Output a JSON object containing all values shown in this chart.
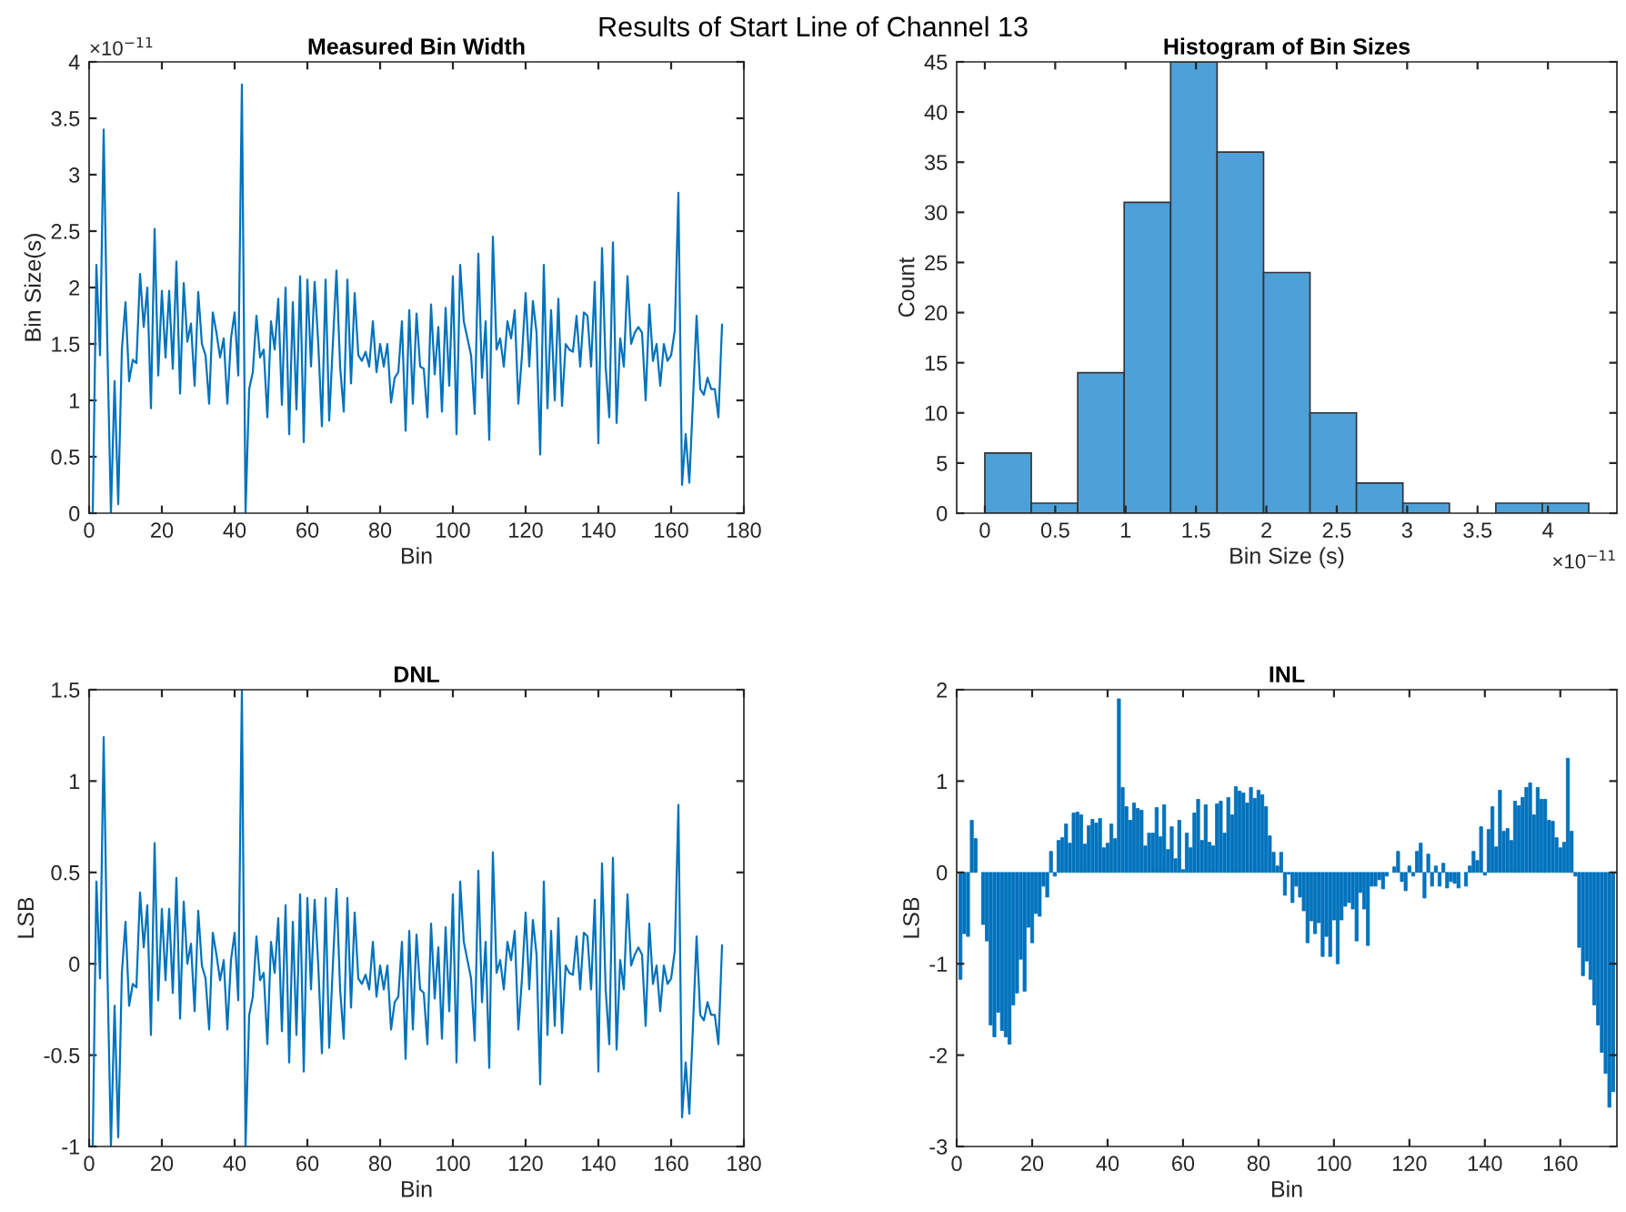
{
  "chart_data": [
    {
      "type": "line",
      "title": "Measured Bin Width",
      "xlabel": "Bin",
      "ylabel": "Bin Size(s)",
      "color": "#0072bd",
      "annotations": [
        "Results of Start Line of Channel 13",
        "×10$^{−11}$"
      ],
      "xlim": [
        0,
        180
      ],
      "xticks": [
        0,
        20,
        40,
        60,
        80,
        100,
        120,
        140,
        160,
        180
      ],
      "ylim": [
        0,
        4
      ],
      "yticks": [
        0,
        0.5,
        1,
        1.5,
        2,
        2.5,
        3,
        3.5,
        4
      ],
      "grid": false,
      "legend": false,
      "x": [
        1,
        2,
        3,
        4,
        5,
        6,
        7,
        8,
        9,
        10,
        11,
        12,
        13,
        14,
        15,
        16,
        17,
        18,
        19,
        20,
        21,
        22,
        23,
        24,
        25,
        26,
        27,
        28,
        29,
        30,
        31,
        32,
        33,
        34,
        35,
        36,
        37,
        38,
        39,
        40,
        41,
        42,
        43,
        44,
        45,
        46,
        47,
        48,
        49,
        50,
        51,
        52,
        53,
        54,
        55,
        56,
        57,
        58,
        59,
        60,
        61,
        62,
        63,
        64,
        65,
        66,
        67,
        68,
        69,
        70,
        71,
        72,
        73,
        74,
        75,
        76,
        77,
        78,
        79,
        80,
        81,
        82,
        83,
        84,
        85,
        86,
        87,
        88,
        89,
        90,
        91,
        92,
        93,
        94,
        95,
        96,
        97,
        98,
        99,
        100,
        101,
        102,
        103,
        104,
        105,
        106,
        107,
        108,
        109,
        110,
        111,
        112,
        113,
        114,
        115,
        116,
        117,
        118,
        119,
        120,
        121,
        122,
        123,
        124,
        125,
        126,
        127,
        128,
        129,
        130,
        131,
        132,
        133,
        134,
        135,
        136,
        137,
        138,
        139,
        140,
        141,
        142,
        143,
        144,
        145,
        146,
        147,
        148,
        149,
        150,
        151,
        152,
        153,
        154,
        155,
        156,
        157,
        158,
        159,
        160,
        161,
        162,
        163,
        164,
        165,
        166,
        167,
        168,
        169,
        170,
        171,
        172,
        173,
        174
      ],
      "values": [
        0,
        2.2,
        1.4,
        3.4,
        1.5,
        0,
        1.17,
        0.08,
        1.45,
        1.87,
        1.17,
        1.36,
        1.33,
        2.12,
        1.65,
        2.0,
        0.93,
        2.52,
        1.22,
        1.97,
        1.38,
        1.97,
        1.28,
        2.23,
        1.06,
        2.04,
        1.52,
        1.68,
        1.13,
        1.96,
        1.5,
        1.4,
        0.97,
        1.78,
        1.6,
        1.38,
        1.55,
        0.97,
        1.55,
        1.78,
        1.22,
        3.8,
        0,
        1.1,
        1.25,
        1.75,
        1.38,
        1.45,
        0.85,
        1.7,
        1.45,
        1.9,
        0.96,
        2.0,
        0.7,
        1.87,
        0.92,
        2.1,
        0.63,
        2.07,
        1.3,
        2.05,
        1.5,
        0.77,
        2.07,
        0.82,
        1.5,
        2.15,
        1.3,
        0.9,
        2.07,
        1.15,
        1.95,
        1.4,
        1.35,
        1.43,
        1.3,
        1.7,
        1.25,
        1.5,
        1.3,
        1.5,
        0.98,
        1.2,
        1.25,
        1.7,
        0.73,
        1.8,
        0.97,
        1.77,
        1.3,
        1.28,
        0.85,
        1.85,
        1.23,
        1.65,
        0.9,
        1.82,
        1.13,
        2.1,
        0.7,
        2.2,
        1.7,
        1.55,
        1.4,
        0.88,
        2.3,
        1.2,
        1.7,
        0.65,
        2.45,
        1.45,
        1.55,
        1.3,
        1.7,
        1.55,
        1.8,
        0.97,
        1.4,
        1.95,
        1.3,
        1.88,
        1.6,
        0.52,
        2.2,
        0.93,
        1.8,
        1.0,
        1.9,
        0.95,
        1.5,
        1.45,
        1.43,
        1.75,
        1.3,
        1.78,
        1.75,
        1.3,
        2.05,
        0.62,
        2.35,
        1.3,
        0.85,
        2.4,
        0.8,
        1.55,
        1.3,
        2.1,
        1.5,
        1.6,
        1.65,
        1.6,
        1.0,
        1.85,
        1.35,
        1.5,
        1.13,
        1.5,
        1.35,
        1.4,
        1.62,
        2.84,
        0.25,
        0.7,
        0.27,
        1.0,
        1.75,
        1.1,
        1.05,
        1.2,
        1.1,
        1.1,
        0.85,
        1.67
      ]
    },
    {
      "type": "histogram",
      "title": "Histogram of Bin Sizes",
      "xlabel": "Bin Size (s)",
      "ylabel": "Count",
      "color": "#4da1d8",
      "annotations": [
        "×10$^{−11}$"
      ],
      "xlim": [
        -0.2,
        4.49
      ],
      "xticks": [
        0,
        0.5,
        1,
        1.5,
        2,
        2.5,
        3,
        3.5,
        4
      ],
      "ylim": [
        0,
        45
      ],
      "yticks": [
        0,
        5,
        10,
        15,
        20,
        25,
        30,
        35,
        40,
        45
      ],
      "grid": false,
      "legend": false,
      "bins": [
        0,
        0.33,
        0.66,
        0.99,
        1.32,
        1.65,
        1.98,
        2.31,
        2.64,
        2.97,
        3.3,
        3.63,
        3.96,
        4.29
      ],
      "values": [
        6,
        1,
        14,
        31,
        45,
        36,
        24,
        10,
        3,
        1,
        0,
        1,
        1
      ]
    },
    {
      "type": "line",
      "title": "DNL",
      "xlabel": "Bin",
      "ylabel": "LSB",
      "color": "#0072bd",
      "xlim": [
        0,
        180
      ],
      "xticks": [
        0,
        20,
        40,
        60,
        80,
        100,
        120,
        140,
        160,
        180
      ],
      "ylim": [
        -1,
        1.5
      ],
      "yticks": [
        -1,
        -0.5,
        0,
        0.5,
        1,
        1.5
      ],
      "grid": false,
      "legend": false,
      "x": [
        1,
        2,
        3,
        4,
        5,
        6,
        7,
        8,
        9,
        10,
        11,
        12,
        13,
        14,
        15,
        16,
        17,
        18,
        19,
        20,
        21,
        22,
        23,
        24,
        25,
        26,
        27,
        28,
        29,
        30,
        31,
        32,
        33,
        34,
        35,
        36,
        37,
        38,
        39,
        40,
        41,
        42,
        43,
        44,
        45,
        46,
        47,
        48,
        49,
        50,
        51,
        52,
        53,
        54,
        55,
        56,
        57,
        58,
        59,
        60,
        61,
        62,
        63,
        64,
        65,
        66,
        67,
        68,
        69,
        70,
        71,
        72,
        73,
        74,
        75,
        76,
        77,
        78,
        79,
        80,
        81,
        82,
        83,
        84,
        85,
        86,
        87,
        88,
        89,
        90,
        91,
        92,
        93,
        94,
        95,
        96,
        97,
        98,
        99,
        100,
        101,
        102,
        103,
        104,
        105,
        106,
        107,
        108,
        109,
        110,
        111,
        112,
        113,
        114,
        115,
        116,
        117,
        118,
        119,
        120,
        121,
        122,
        123,
        124,
        125,
        126,
        127,
        128,
        129,
        130,
        131,
        132,
        133,
        134,
        135,
        136,
        137,
        138,
        139,
        140,
        141,
        142,
        143,
        144,
        145,
        146,
        147,
        148,
        149,
        150,
        151,
        152,
        153,
        154,
        155,
        156,
        157,
        158,
        159,
        160,
        161,
        162,
        163,
        164,
        165,
        166,
        167,
        168,
        169,
        170,
        171,
        172,
        173,
        174
      ],
      "values": [
        -1,
        0.45,
        -0.08,
        1.24,
        -0.01,
        -1,
        -0.23,
        -0.95,
        -0.05,
        0.23,
        -0.23,
        -0.11,
        -0.13,
        0.39,
        0.09,
        0.32,
        -0.39,
        0.66,
        -0.2,
        0.3,
        -0.09,
        0.3,
        -0.16,
        0.47,
        -0.3,
        0.34,
        0,
        0.11,
        -0.26,
        0.29,
        -0.01,
        -0.08,
        -0.36,
        0.17,
        0.05,
        -0.09,
        0.02,
        -0.36,
        0.02,
        0.17,
        -0.2,
        1.5,
        -1,
        -0.28,
        -0.18,
        0.15,
        -0.09,
        -0.05,
        -0.44,
        0.12,
        -0.05,
        0.25,
        -0.37,
        0.32,
        -0.54,
        0.23,
        -0.39,
        0.38,
        -0.59,
        0.36,
        -0.14,
        0.35,
        -0.01,
        -0.49,
        0.36,
        -0.46,
        -0.01,
        0.41,
        -0.14,
        -0.41,
        0.36,
        -0.24,
        0.28,
        -0.08,
        -0.11,
        -0.06,
        -0.14,
        0.12,
        -0.18,
        -0.01,
        -0.14,
        -0.01,
        -0.36,
        -0.21,
        -0.18,
        0.12,
        -0.52,
        0.18,
        -0.36,
        0.16,
        -0.14,
        -0.16,
        -0.44,
        0.22,
        -0.19,
        0.09,
        -0.41,
        0.2,
        -0.26,
        0.38,
        -0.54,
        0.45,
        0.12,
        0.02,
        -0.08,
        -0.42,
        0.51,
        -0.21,
        0.12,
        -0.57,
        0.61,
        -0.05,
        0.02,
        -0.14,
        0.12,
        0.02,
        0.18,
        -0.36,
        -0.08,
        0.28,
        -0.14,
        0.24,
        0.05,
        -0.66,
        0.45,
        -0.39,
        0.18,
        -0.34,
        0.25,
        -0.38,
        -0.01,
        -0.05,
        -0.06,
        0.15,
        -0.14,
        0.17,
        0.15,
        -0.14,
        0.35,
        -0.59,
        0.55,
        -0.14,
        -0.44,
        0.58,
        -0.47,
        0.02,
        -0.14,
        0.38,
        -0.01,
        0.05,
        0.09,
        0.05,
        -0.34,
        0.22,
        -0.11,
        -0.01,
        -0.26,
        -0.01,
        -0.11,
        -0.08,
        0.07,
        0.87,
        -0.84,
        -0.54,
        -0.82,
        -0.34,
        0.15,
        -0.28,
        -0.31,
        -0.21,
        -0.28,
        -0.28,
        -0.44,
        0.1
      ]
    },
    {
      "type": "bar",
      "title": "INL",
      "xlabel": "Bin",
      "ylabel": "LSB",
      "color": "#0072bd",
      "xlim": [
        0,
        175
      ],
      "xticks": [
        0,
        20,
        40,
        60,
        80,
        100,
        120,
        140,
        160
      ],
      "ylim": [
        -3,
        2
      ],
      "yticks": [
        -3,
        -2,
        -1,
        0,
        1,
        2
      ],
      "grid": false,
      "legend": false,
      "x": [
        1,
        2,
        3,
        4,
        5,
        6,
        7,
        8,
        9,
        10,
        11,
        12,
        13,
        14,
        15,
        16,
        17,
        18,
        19,
        20,
        21,
        22,
        23,
        24,
        25,
        26,
        27,
        28,
        29,
        30,
        31,
        32,
        33,
        34,
        35,
        36,
        37,
        38,
        39,
        40,
        41,
        42,
        43,
        44,
        45,
        46,
        47,
        48,
        49,
        50,
        51,
        52,
        53,
        54,
        55,
        56,
        57,
        58,
        59,
        60,
        61,
        62,
        63,
        64,
        65,
        66,
        67,
        68,
        69,
        70,
        71,
        72,
        73,
        74,
        75,
        76,
        77,
        78,
        79,
        80,
        81,
        82,
        83,
        84,
        85,
        86,
        87,
        88,
        89,
        90,
        91,
        92,
        93,
        94,
        95,
        96,
        97,
        98,
        99,
        100,
        101,
        102,
        103,
        104,
        105,
        106,
        107,
        108,
        109,
        110,
        111,
        112,
        113,
        114,
        115,
        116,
        117,
        118,
        119,
        120,
        121,
        122,
        123,
        124,
        125,
        126,
        127,
        128,
        129,
        130,
        131,
        132,
        133,
        134,
        135,
        136,
        137,
        138,
        139,
        140,
        141,
        142,
        143,
        144,
        145,
        146,
        147,
        148,
        149,
        150,
        151,
        152,
        153,
        154,
        155,
        156,
        157,
        158,
        159,
        160,
        161,
        162,
        163,
        164,
        165,
        166,
        167,
        168,
        169,
        170,
        171,
        172,
        173,
        174
      ],
      "values": [
        -1.17,
        -0.67,
        -0.7,
        0.57,
        0.37,
        0,
        -0.57,
        -0.75,
        -1.67,
        -1.8,
        -1.53,
        -1.73,
        -1.8,
        -1.88,
        -1.45,
        -1.32,
        -0.95,
        -1.3,
        -0.6,
        -0.77,
        -0.45,
        -0.48,
        -0.15,
        -0.27,
        0.23,
        -0.04,
        0.35,
        0.38,
        0.53,
        0.32,
        0.65,
        0.66,
        0.63,
        0.31,
        0.51,
        0.58,
        0.54,
        0.59,
        0.27,
        0.32,
        0.53,
        0.37,
        1.9,
        0.93,
        0.72,
        0.57,
        0.76,
        0.7,
        0.68,
        0.29,
        0.43,
        0.43,
        0.71,
        0.39,
        0.74,
        0.25,
        0.5,
        0.15,
        0.57,
        0.03,
        0.43,
        0.27,
        0.65,
        0.8,
        0.35,
        0.74,
        0.33,
        0.29,
        0.75,
        0.78,
        0.43,
        0.82,
        0.63,
        0.94,
        0.89,
        0.87,
        0.76,
        0.93,
        0.81,
        0.9,
        0.85,
        0.72,
        0.4,
        0.22,
        0.07,
        0.22,
        -0.25,
        -0.02,
        -0.33,
        -0.15,
        -0.27,
        -0.42,
        -0.77,
        -0.53,
        -0.67,
        -0.55,
        -0.92,
        -0.7,
        -0.92,
        -0.52,
        -1.0,
        -0.52,
        -0.37,
        -0.33,
        -0.4,
        -0.75,
        -0.22,
        -0.4,
        -0.8,
        -0.15,
        -0.15,
        -0.08,
        -0.18,
        -0.04,
        0,
        0.06,
        0.23,
        -0.1,
        -0.2,
        0.07,
        -0.04,
        0.23,
        0.32,
        -0.28,
        0.2,
        -0.15,
        0.07,
        -0.15,
        0.1,
        -0.17,
        -0.1,
        -0.12,
        -0.17,
        0,
        -0.15,
        0.07,
        0.23,
        0.13,
        0.5,
        -0.03,
        0.47,
        0.72,
        0.28,
        0.9,
        0.45,
        0.48,
        0.35,
        0.78,
        0.73,
        0.82,
        0.93,
        0.98,
        0.63,
        0.93,
        0.8,
        0.8,
        0.57,
        0.56,
        0.38,
        0.27,
        0.33,
        1.25,
        0.45,
        -0.04,
        -0.82,
        -1.13,
        -0.97,
        -1.17,
        -1.45,
        -1.67,
        -1.97,
        -2.2,
        -2.57,
        -2.4
      ]
    }
  ]
}
